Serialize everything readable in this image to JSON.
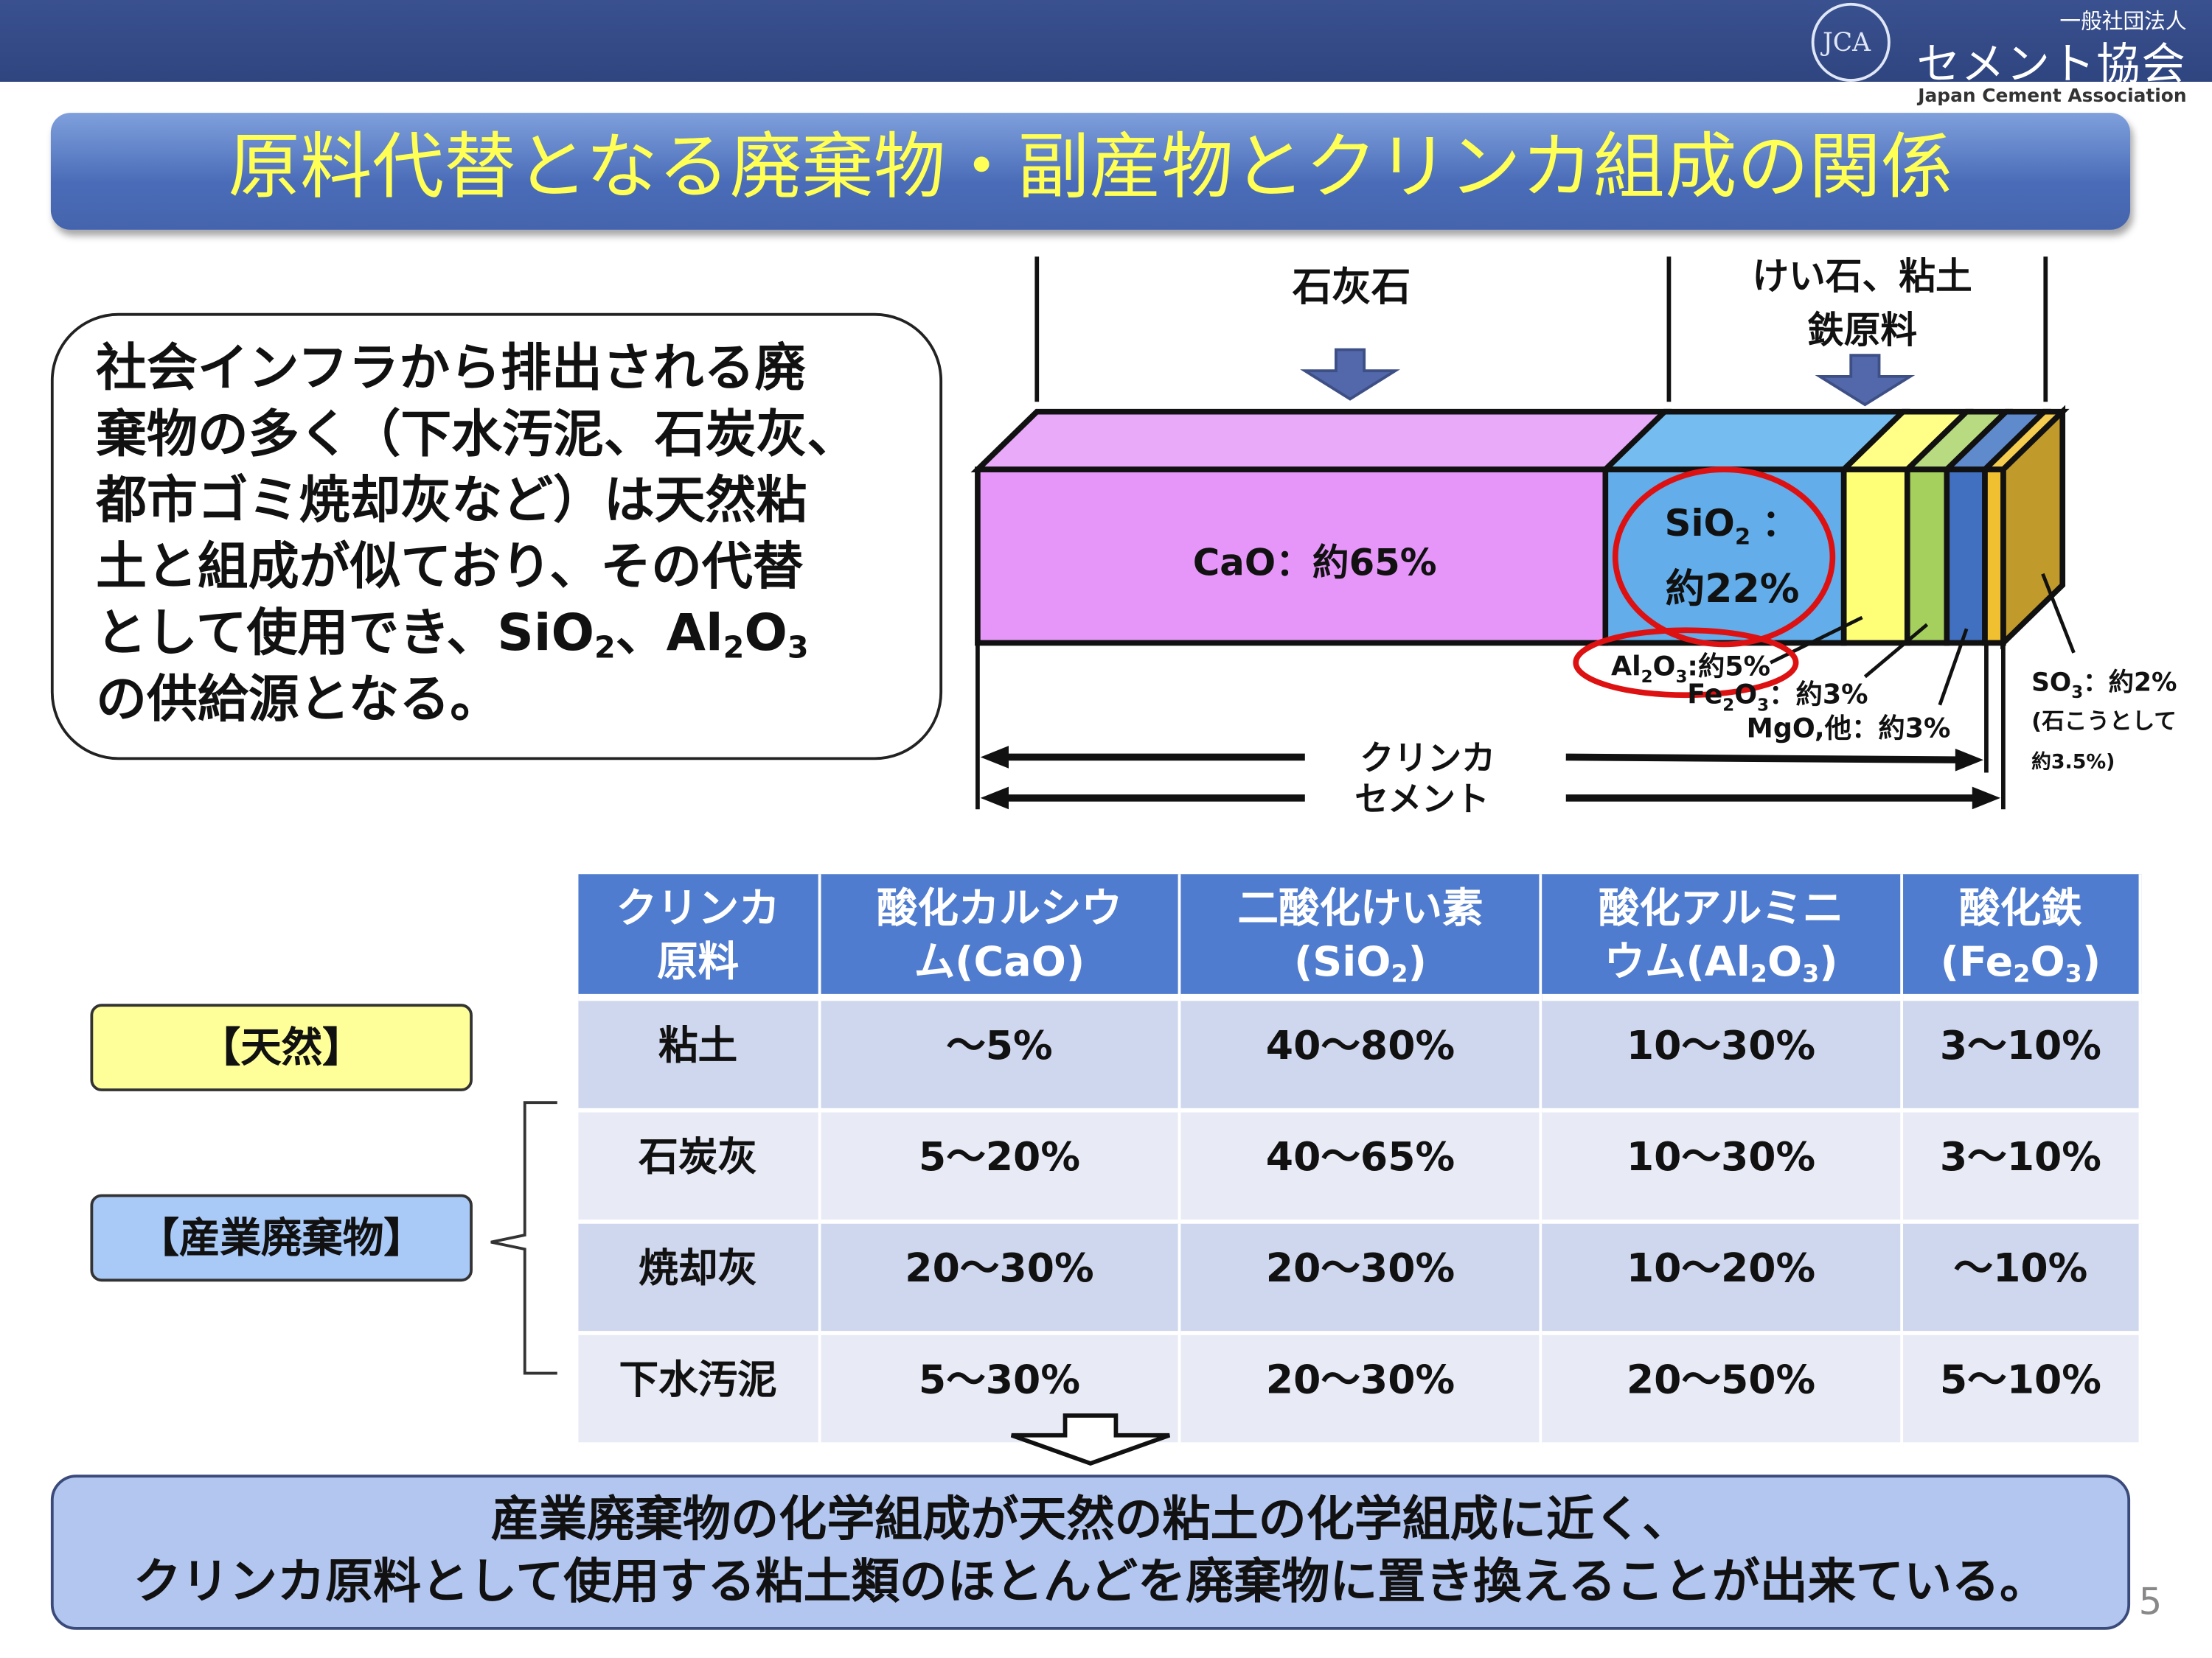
{
  "header": {
    "org_prefix": "一般社団法人",
    "org_name": "セメント協会",
    "org_name_en": "Japan Cement Association",
    "logo_mark": "JCA"
  },
  "title": "原料代替となる廃棄物・副産物とクリンカ組成の関係",
  "textbox": {
    "lines": [
      [
        {
          "t": "社会インフラから排出される廃"
        }
      ],
      [
        {
          "t": "棄物の多く（下水汚泥、石炭灰、"
        }
      ],
      [
        {
          "t": "都市ゴミ焼却灰など）は天然粘"
        }
      ],
      [
        {
          "t": "土と組成が似ており、その代替"
        }
      ],
      [
        {
          "t": "として使用でき、SiO"
        },
        {
          "s": "2"
        },
        {
          "t": "、Al"
        },
        {
          "s": "2"
        },
        {
          "t": "O"
        },
        {
          "s": "3"
        }
      ],
      [
        {
          "t": "の供給源となる。"
        }
      ]
    ]
  },
  "diagram": {
    "source_limestone": "石灰石",
    "source_clay_1": "けい石、粘土",
    "source_clay_2": "鉄原料",
    "cao_label": "CaO：約65%",
    "sio2_label_a": "SiO",
    "sio2_label_sub": "2",
    "sio2_label_b": "：",
    "sio2_value": "約22%",
    "al2o3": [
      {
        "t": "Al"
      },
      {
        "s": "2"
      },
      {
        "t": "O"
      },
      {
        "s": "3"
      },
      {
        "t": ":約5%"
      }
    ],
    "fe2o3": [
      {
        "t": "Fe"
      },
      {
        "s": "2"
      },
      {
        "t": "O"
      },
      {
        "s": "3"
      },
      {
        "t": "：約3%"
      }
    ],
    "mgo": "MgO,他：約3%",
    "so3": [
      {
        "t": "SO"
      },
      {
        "s": "3"
      },
      {
        "t": "：約2%"
      }
    ],
    "so3_note_1": "(石こうとして",
    "so3_note_2": "約3.5%)",
    "clinker": "クリンカ",
    "cement": "セメント",
    "composition_percent": {
      "CaO": 65,
      "SiO2": 22,
      "Al2O3": 5,
      "Fe2O3": 3,
      "MgO_other": 3,
      "SO3": 2
    },
    "colors": {
      "CaO": "#e596f8",
      "SiO2": "#62adea",
      "Al2O3": "#ffff77",
      "Fe2O3": "#a6d05e",
      "MgO": "#4170c0",
      "SO3": "#f0c030",
      "accent_red": "#dd1111",
      "arrow": "#5368ab"
    }
  },
  "table": {
    "headers": [
      {
        "l1": "クリンカ",
        "l2": [
          {
            "t": "原料"
          }
        ]
      },
      {
        "l1": "酸化カルシウ",
        "l2": [
          {
            "t": "ム(CaO)"
          }
        ]
      },
      {
        "l1": "二酸化けい素",
        "l2": [
          {
            "t": "(SiO"
          },
          {
            "s": "2"
          },
          {
            "t": ")"
          }
        ]
      },
      {
        "l1": "酸化アルミニ",
        "l2": [
          {
            "t": "ウム(Al"
          },
          {
            "s": "2"
          },
          {
            "t": "O"
          },
          {
            "s": "3"
          },
          {
            "t": ")"
          }
        ]
      },
      {
        "l1": "酸化鉄",
        "l2": [
          {
            "t": "(Fe"
          },
          {
            "s": "2"
          },
          {
            "t": "O"
          },
          {
            "s": "3"
          },
          {
            "t": ")"
          }
        ]
      }
    ],
    "rows": [
      [
        "粘土",
        "～5%",
        "40～80%",
        "10～30%",
        "3～10%"
      ],
      [
        "石炭灰",
        "5～20%",
        "40～65%",
        "10～30%",
        "3～10%"
      ],
      [
        "焼却灰",
        "20～30%",
        "20～30%",
        "10～20%",
        "～10%"
      ],
      [
        "下水汚泥",
        "5～30%",
        "20～30%",
        "20～50%",
        "5～10%"
      ]
    ]
  },
  "labels": {
    "natural": "【天然】",
    "industrial": "【産業廃棄物】"
  },
  "conclusion": {
    "line1": "産業廃棄物の化学組成が天然の粘土の化学組成に近く、",
    "line2": "クリンカ原料として使用する粘土類のほとんどを廃棄物に置き換えることが出来ている。"
  },
  "page_number": "5"
}
